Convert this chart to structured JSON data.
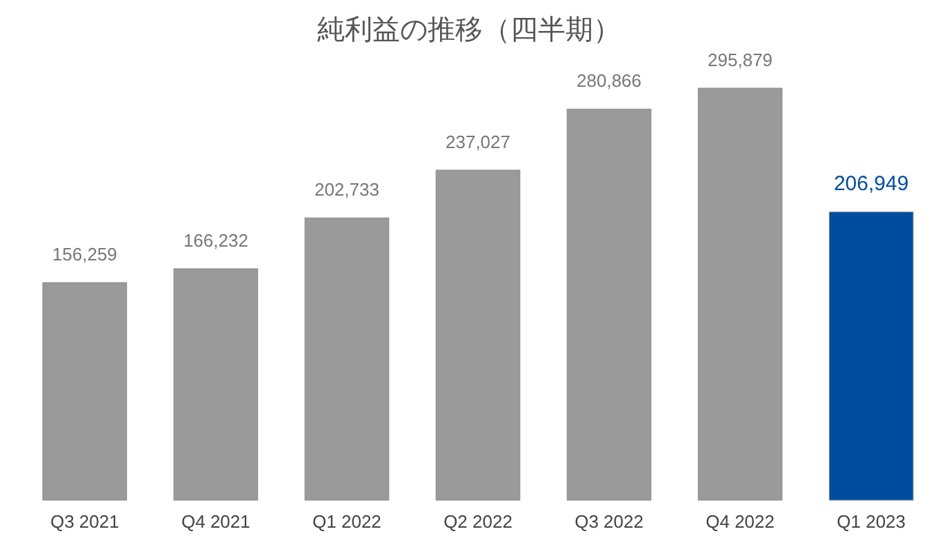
{
  "chart_data": {
    "type": "bar",
    "title": "純利益の推移（四半期）",
    "categories": [
      "Q3 2021",
      "Q4 2021",
      "Q1 2022",
      "Q2 2022",
      "Q3 2022",
      "Q4 2022",
      "Q1 2023"
    ],
    "values": [
      156259,
      166232,
      202733,
      237027,
      280866,
      295879,
      206949
    ],
    "colors": [
      "#9a9a9a",
      "#9a9a9a",
      "#9a9a9a",
      "#9a9a9a",
      "#9a9a9a",
      "#9a9a9a",
      "#004c9e"
    ],
    "value_labels": [
      "156,259",
      "166,232",
      "202,733",
      "237,027",
      "280,866",
      "295,879",
      "206,949"
    ]
  }
}
